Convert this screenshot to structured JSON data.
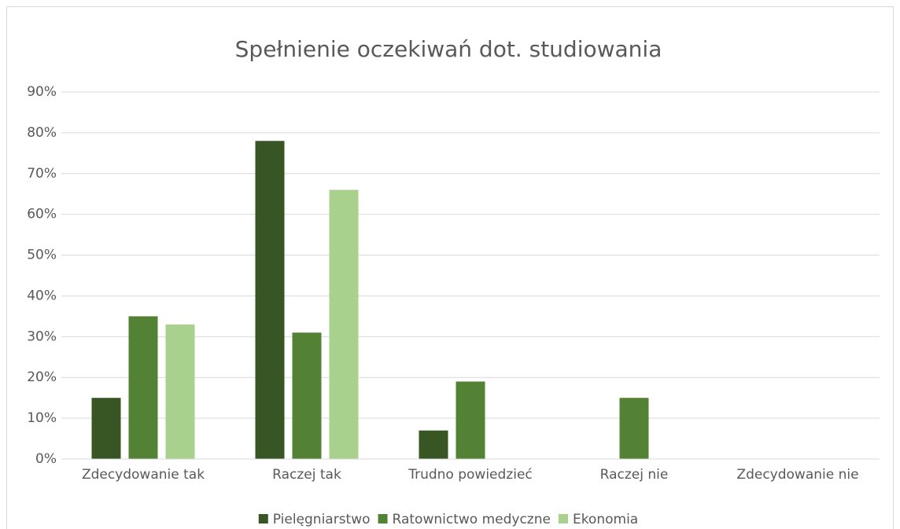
{
  "chart_data": {
    "type": "bar",
    "title": "Spełnienie oczekiwań dot. studiowania",
    "categories": [
      "Zdecydowanie tak",
      "Raczej tak",
      "Trudno powiedzieć",
      "Raczej nie",
      "Zdecydowanie nie"
    ],
    "series": [
      {
        "name": "Pielęgniarstwo",
        "color": "#375623",
        "values": [
          15,
          78,
          7,
          0,
          0
        ]
      },
      {
        "name": "Ratownictwo medyczne",
        "color": "#548235",
        "values": [
          35,
          31,
          19,
          15,
          0
        ]
      },
      {
        "name": "Ekonomia",
        "color": "#a9d18e",
        "values": [
          33,
          66,
          0,
          0,
          0
        ]
      }
    ],
    "ylim": [
      0,
      90
    ],
    "yticks": [
      {
        "value": 0,
        "label": "0%"
      },
      {
        "value": 10,
        "label": "10%"
      },
      {
        "value": 20,
        "label": "20%"
      },
      {
        "value": 30,
        "label": "30%"
      },
      {
        "value": 40,
        "label": "40%"
      },
      {
        "value": 50,
        "label": "50%"
      },
      {
        "value": 60,
        "label": "60%"
      },
      {
        "value": 70,
        "label": "70%"
      },
      {
        "value": 80,
        "label": "80%"
      },
      {
        "value": 90,
        "label": "90%"
      }
    ],
    "grid": true,
    "legend": "bottom"
  }
}
